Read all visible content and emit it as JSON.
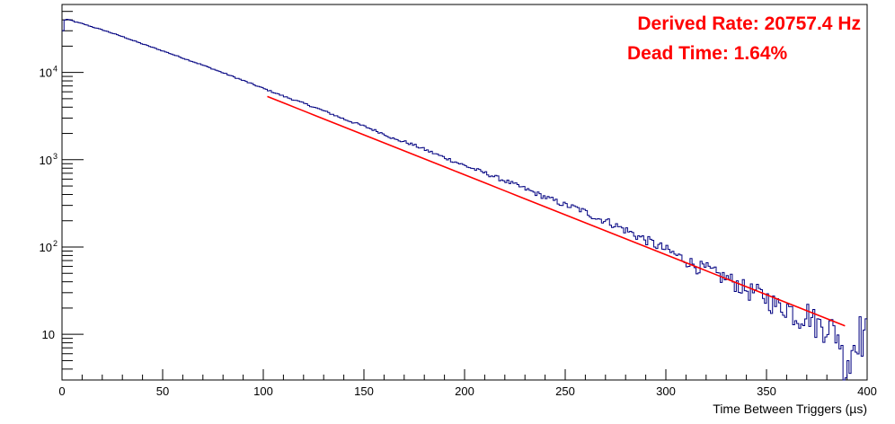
{
  "chart_data": {
    "type": "line",
    "xlabel": "Time Between Triggers (µs)",
    "xlim": [
      0,
      400
    ],
    "ylim": [
      3,
      60000
    ],
    "y_scale": "log",
    "grid": false,
    "legend": "none",
    "x_ticks": [
      "0",
      "50",
      "100",
      "150",
      "200",
      "250",
      "300",
      "350",
      "400"
    ],
    "y_ticks": [
      {
        "value": 10,
        "label": "10"
      },
      {
        "value": 100,
        "label": "10",
        "exp": "2"
      },
      {
        "value": 1000,
        "label": "10",
        "exp": "3"
      },
      {
        "value": 10000,
        "label": "10",
        "exp": "4"
      }
    ],
    "annotations": [
      {
        "text": "Derived Rate: 20757.4 Hz",
        "color": "#ff0000"
      },
      {
        "text": "Dead Time: 1.64%",
        "color": "#ff0000"
      }
    ],
    "series": [
      {
        "kind": "histogram",
        "color": "#000080",
        "bin_width": 1,
        "x": [
          0,
          1,
          2,
          3,
          4,
          5,
          6,
          7,
          8,
          9,
          10,
          15,
          20,
          30,
          40,
          50,
          60,
          70,
          80,
          90,
          100,
          110,
          120,
          130,
          140,
          150,
          160,
          165,
          170,
          175,
          180,
          190,
          200,
          210,
          220,
          230,
          240,
          250,
          255,
          260,
          265,
          270,
          275,
          280,
          285,
          290,
          295,
          300,
          305,
          310,
          315,
          320,
          325,
          330,
          335,
          340,
          345,
          350,
          355,
          360,
          365,
          370,
          375,
          380,
          385,
          386,
          387,
          388,
          389,
          390,
          391,
          392,
          393,
          394,
          395,
          396,
          397,
          398,
          399
        ],
        "values": [
          30000,
          40000,
          40500,
          40000,
          39500,
          39000,
          38000,
          37500,
          37000,
          36500,
          36000,
          33000,
          30500,
          25500,
          21000,
          17500,
          14500,
          12000,
          9800,
          8000,
          6500,
          5300,
          4400,
          3600,
          2900,
          2400,
          1950,
          1700,
          1600,
          1450,
          1300,
          1050,
          850,
          700,
          570,
          460,
          370,
          300,
          280,
          250,
          215,
          200,
          175,
          155,
          135,
          120,
          105,
          92,
          80,
          70,
          60,
          56,
          48,
          44,
          38,
          32,
          30,
          26,
          21,
          21,
          16,
          18,
          13,
          13,
          10,
          9,
          6,
          5,
          4,
          6,
          4,
          7,
          8,
          10,
          10,
          12,
          9,
          11,
          11
        ]
      },
      {
        "kind": "fit",
        "color": "#ff0000",
        "x": [
          102,
          389
        ],
        "values": [
          5300,
          12.5
        ]
      }
    ]
  }
}
